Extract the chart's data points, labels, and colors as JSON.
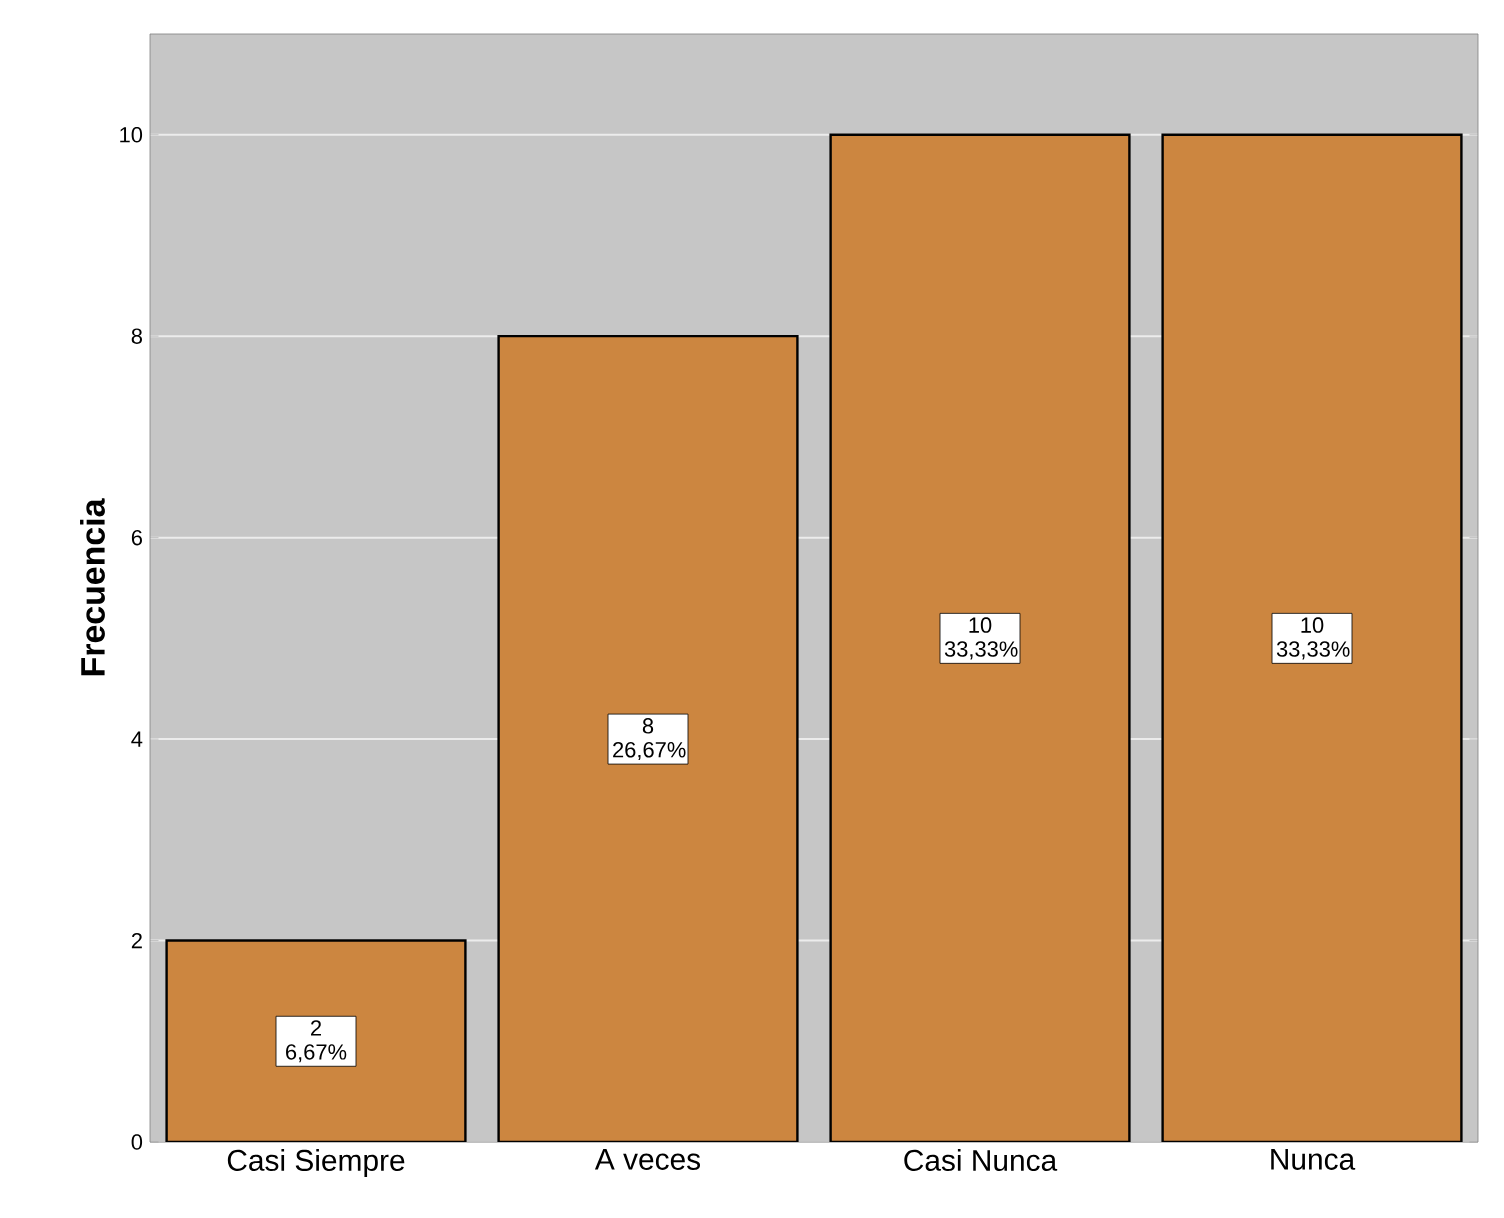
{
  "chart_data": {
    "type": "bar",
    "ylabel": "Frecuencia",
    "categories": [
      "Casi Siempre",
      "A veces",
      "Casi Nunca",
      "Nunca"
    ],
    "values": [
      2,
      8,
      10,
      10
    ],
    "value_labels": [
      "2 6,67%",
      "8 26,67%",
      "10 33,33%",
      "10 33,33%"
    ],
    "color": "#cc8640",
    "ylim": [
      0,
      11
    ],
    "yticks": [
      0,
      2,
      4,
      6,
      8,
      10
    ],
    "grid": "y"
  }
}
